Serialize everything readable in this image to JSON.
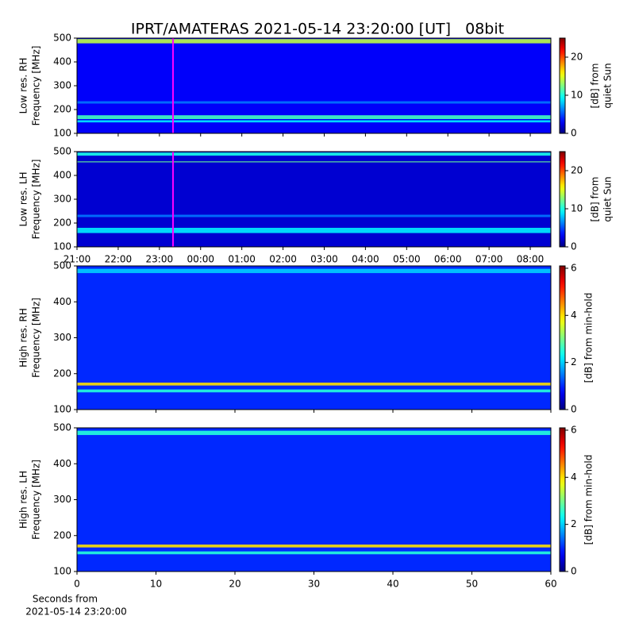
{
  "figure": {
    "title": "IPRT/AMATERAS 2021-05-14 23:20:00 [UT]   08bit",
    "footer": [
      "Seconds from",
      "2021-05-14 23:20:00"
    ]
  },
  "chart_data": [
    {
      "type": "heatmap",
      "ylabel": [
        "Low res. RH",
        "Frequency [MHz]"
      ],
      "ylim": [
        100,
        500
      ],
      "yticks": [
        100,
        200,
        300,
        400,
        500
      ],
      "xlim": [
        21,
        32.5
      ],
      "show_xtick_labels": false,
      "xticks": [
        {
          "value": 21,
          "label": "21:00"
        },
        {
          "value": 22,
          "label": "22:00"
        },
        {
          "value": 23,
          "label": "23:00"
        },
        {
          "value": 24,
          "label": "00:00"
        },
        {
          "value": 25,
          "label": "01:00"
        },
        {
          "value": 26,
          "label": "02:00"
        },
        {
          "value": 27,
          "label": "03:00"
        },
        {
          "value": 28,
          "label": "04:00"
        },
        {
          "value": 29,
          "label": "05:00"
        },
        {
          "value": 30,
          "label": "06:00"
        },
        {
          "value": 31,
          "label": "07:00"
        },
        {
          "value": 32,
          "label": "08:00"
        }
      ],
      "marker": {
        "x": 23.33,
        "color": "#ff00ff"
      },
      "colorbar": {
        "label": [
          "[dB] from",
          "quiet Sun"
        ],
        "lim": [
          0,
          25
        ],
        "ticks": [
          0,
          10,
          20
        ]
      },
      "background": 3,
      "bands": [
        {
          "freq": [
            478,
            496
          ],
          "level": 14
        },
        {
          "freq": [
            160,
            176
          ],
          "level": 11
        },
        {
          "freq": [
            146,
            155
          ],
          "level": 9
        },
        {
          "freq": [
            225,
            235
          ],
          "level": 6
        }
      ]
    },
    {
      "type": "heatmap",
      "ylabel": [
        "Low res. LH",
        "Frequency [MHz]"
      ],
      "ylim": [
        100,
        500
      ],
      "yticks": [
        100,
        200,
        300,
        400,
        500
      ],
      "xlim": [
        21,
        32.5
      ],
      "show_xtick_labels": true,
      "xticks": [
        {
          "value": 21,
          "label": "21:00"
        },
        {
          "value": 22,
          "label": "22:00"
        },
        {
          "value": 23,
          "label": "23:00"
        },
        {
          "value": 24,
          "label": "00:00"
        },
        {
          "value": 25,
          "label": "01:00"
        },
        {
          "value": 26,
          "label": "02:00"
        },
        {
          "value": 27,
          "label": "03:00"
        },
        {
          "value": 28,
          "label": "04:00"
        },
        {
          "value": 29,
          "label": "05:00"
        },
        {
          "value": 30,
          "label": "06:00"
        },
        {
          "value": 31,
          "label": "07:00"
        },
        {
          "value": 32,
          "label": "08:00"
        }
      ],
      "marker": {
        "x": 23.33,
        "color": "#ff00ff"
      },
      "colorbar": {
        "label": [
          "[dB] from",
          "quiet Sun"
        ],
        "lim": [
          0,
          25
        ],
        "ticks": [
          0,
          10,
          20
        ]
      },
      "background": 2,
      "bands": [
        {
          "freq": [
            483,
            496
          ],
          "level": 10
        },
        {
          "freq": [
            455,
            459
          ],
          "level": 12
        },
        {
          "freq": [
            158,
            180
          ],
          "level": 9
        },
        {
          "freq": [
            225,
            235
          ],
          "level": 6
        }
      ]
    },
    {
      "type": "heatmap",
      "ylabel": [
        "High res. RH",
        "Frequency [MHz]"
      ],
      "ylim": [
        100,
        500
      ],
      "yticks": [
        100,
        200,
        300,
        400,
        500
      ],
      "xlim": [
        0,
        60
      ],
      "show_xtick_labels": false,
      "xticks": [
        0,
        10,
        20,
        30,
        40,
        50,
        60
      ],
      "colorbar": {
        "label": [
          "[dB] from min-hold"
        ],
        "lim": [
          0,
          6.1
        ],
        "ticks": [
          0,
          2,
          4,
          6
        ]
      },
      "background": 1,
      "bands": [
        {
          "freq": [
            480,
            492
          ],
          "level": 2
        },
        {
          "freq": [
            167,
            175
          ],
          "level": 4
        },
        {
          "freq": [
            148,
            156
          ],
          "level": 2.5
        }
      ]
    },
    {
      "type": "heatmap",
      "ylabel": [
        "High res. LH",
        "Frequency [MHz]"
      ],
      "ylim": [
        100,
        500
      ],
      "yticks": [
        100,
        200,
        300,
        400,
        500
      ],
      "xlim": [
        0,
        60
      ],
      "show_xtick_labels": true,
      "xticks": [
        0,
        10,
        20,
        30,
        40,
        50,
        60
      ],
      "colorbar": {
        "label": [
          "[dB] from min-hold"
        ],
        "lim": [
          0,
          6.1
        ],
        "ticks": [
          0,
          2,
          4,
          6
        ]
      },
      "background": 1,
      "bands": [
        {
          "freq": [
            480,
            492
          ],
          "level": 2.5
        },
        {
          "freq": [
            167,
            175
          ],
          "level": 4
        },
        {
          "freq": [
            148,
            156
          ],
          "level": 2.5
        }
      ]
    }
  ]
}
